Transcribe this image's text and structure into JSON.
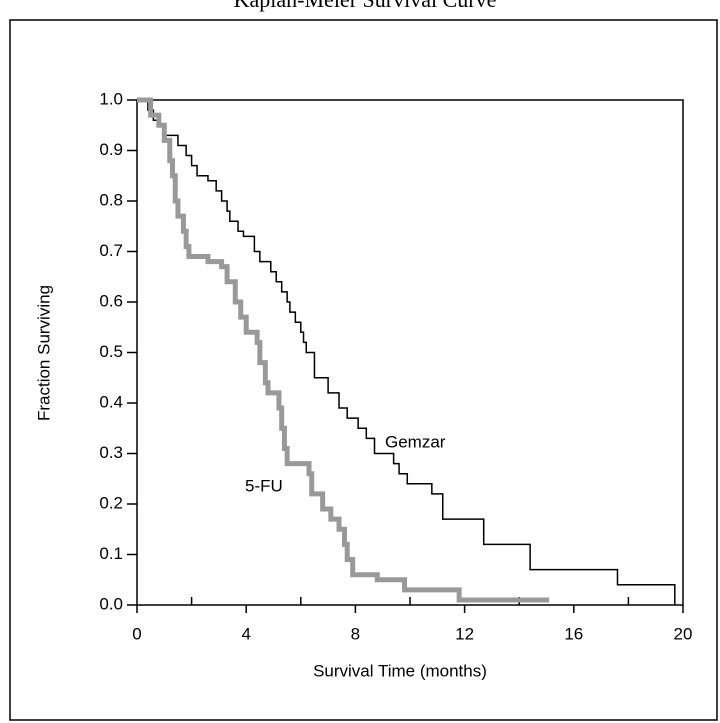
{
  "chart_data": {
    "type": "step",
    "title": "Kaplan-Meier Survival Curve",
    "x_label": "Survival Time (months)",
    "y_label": "Fraction Surviving",
    "xlim": [
      0,
      20
    ],
    "xticks": [
      0,
      4,
      8,
      12,
      16,
      20
    ],
    "ylim": [
      0,
      1
    ],
    "yticks": [
      {
        "value": 0,
        "label": "0.0"
      },
      0.1,
      0.2,
      0.3,
      0.4,
      0.5,
      0.6,
      0.7,
      0.8,
      0.9,
      {
        "value": 1,
        "label": "1.0"
      }
    ],
    "series": [
      {
        "name": "Gemzar",
        "color": "#000000",
        "x": [
          0,
          0.4,
          0.6,
          0.8,
          1.0,
          1.5,
          1.8,
          2.0,
          2.2,
          2.6,
          2.9,
          3.1,
          3.3,
          3.4,
          3.7,
          3.9,
          4.3,
          4.5,
          4.9,
          5.1,
          5.3,
          5.5,
          5.6,
          5.8,
          6.0,
          6.1,
          6.2,
          6.5,
          7.0,
          7.4,
          7.7,
          8.1,
          8.4,
          8.7,
          9.4,
          9.6,
          9.9,
          10.8,
          11.2,
          12.7,
          14.4,
          17.6,
          19.7
        ],
        "values": [
          1.0,
          0.98,
          0.96,
          0.95,
          0.93,
          0.91,
          0.89,
          0.87,
          0.85,
          0.84,
          0.82,
          0.8,
          0.78,
          0.76,
          0.74,
          0.73,
          0.7,
          0.68,
          0.66,
          0.64,
          0.62,
          0.6,
          0.58,
          0.56,
          0.54,
          0.52,
          0.5,
          0.45,
          0.42,
          0.39,
          0.37,
          0.35,
          0.33,
          0.3,
          0.28,
          0.26,
          0.24,
          0.22,
          0.17,
          0.12,
          0.07,
          0.04,
          0.0
        ]
      },
      {
        "name": "5-FU",
        "color": "#999999",
        "x": [
          0,
          0.5,
          0.8,
          1.0,
          1.2,
          1.3,
          1.4,
          1.5,
          1.7,
          1.8,
          1.9,
          2.6,
          3.1,
          3.3,
          3.6,
          3.8,
          4.0,
          4.4,
          4.5,
          4.7,
          4.8,
          5.2,
          5.3,
          5.4,
          5.5,
          6.3,
          6.4,
          6.8,
          7.1,
          7.4,
          7.6,
          7.7,
          7.9,
          8.8,
          9.8,
          11.8,
          15.1
        ],
        "values": [
          1.0,
          0.97,
          0.95,
          0.92,
          0.88,
          0.85,
          0.8,
          0.77,
          0.74,
          0.71,
          0.69,
          0.68,
          0.67,
          0.64,
          0.6,
          0.57,
          0.54,
          0.52,
          0.48,
          0.44,
          0.42,
          0.39,
          0.35,
          0.31,
          0.28,
          0.26,
          0.22,
          0.19,
          0.17,
          0.15,
          0.12,
          0.09,
          0.06,
          0.05,
          0.03,
          0.01,
          0.01
        ]
      }
    ]
  }
}
